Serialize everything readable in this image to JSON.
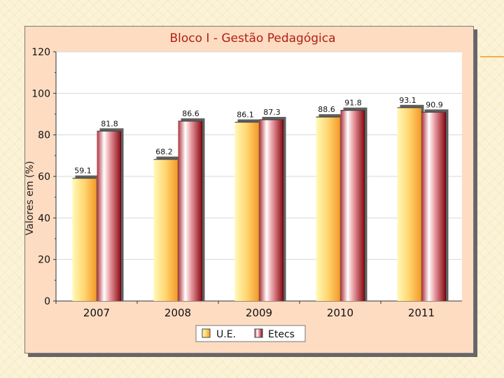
{
  "chart_data": {
    "type": "bar",
    "title": "Bloco I - Gestão Pedagógica",
    "ylabel": "Valores em (%)",
    "xlabel": "",
    "categories": [
      "2007",
      "2008",
      "2009",
      "2010",
      "2011"
    ],
    "ylim": [
      0,
      120
    ],
    "yticks": [
      "0",
      "20",
      "40",
      "60",
      "80",
      "100",
      "120"
    ],
    "grid": true,
    "legend_position": "bottom",
    "series": [
      {
        "name": "U.E.",
        "values": [
          59.1,
          68.2,
          86.1,
          88.6,
          93.1
        ],
        "labels": [
          "59.1",
          "68.2",
          "86.1",
          "88.6",
          "93.1"
        ],
        "color": "#ffb347"
      },
      {
        "name": "Etecs",
        "values": [
          81.8,
          86.6,
          87.3,
          91.8,
          90.9
        ],
        "labels": [
          "81.8",
          "86.6",
          "87.3",
          "91.8",
          "90.9"
        ],
        "color": "#a01020"
      }
    ],
    "title_color": "#b02010"
  }
}
